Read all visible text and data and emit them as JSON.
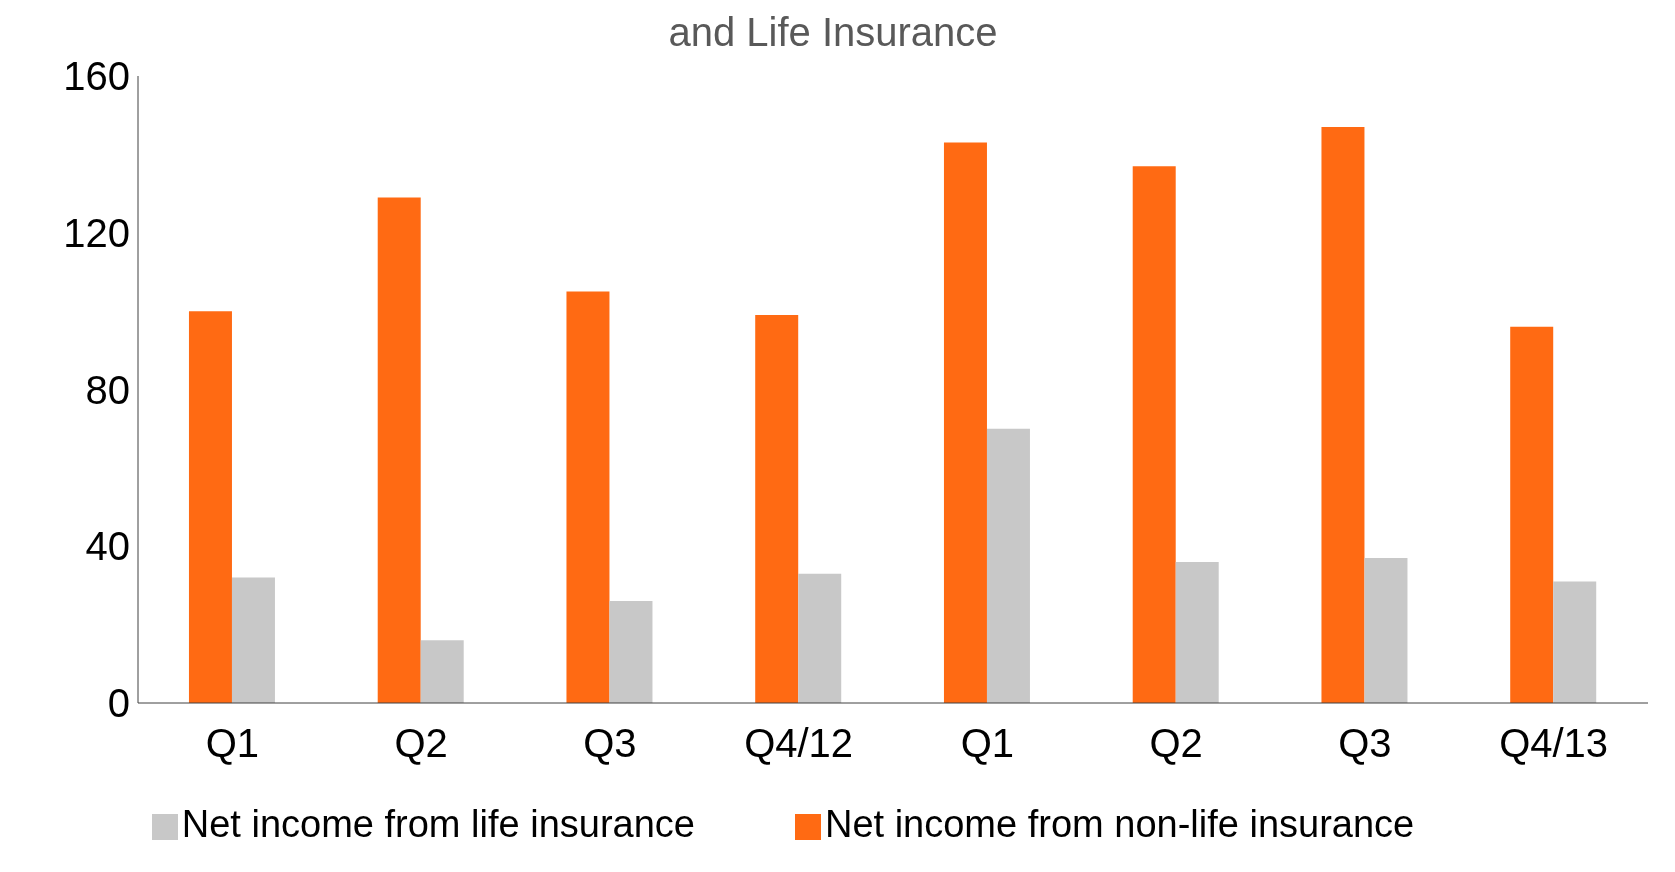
{
  "chart_data": {
    "type": "bar",
    "title": "and Life Insurance",
    "categories": [
      "Q1",
      "Q2",
      "Q3",
      "Q4/12",
      "Q1",
      "Q2",
      "Q3",
      "Q4/13"
    ],
    "series": [
      {
        "name": "Net income from non-life insurance",
        "color": "#ff6a13",
        "values": [
          100,
          129,
          105,
          99,
          143,
          137,
          147,
          96
        ]
      },
      {
        "name": "Net income from life insurance",
        "color": "#c8c8c8",
        "values": [
          32,
          16,
          26,
          33,
          70,
          36,
          37,
          31
        ]
      }
    ],
    "ylim": [
      0,
      160
    ],
    "yticks": [
      0,
      40,
      80,
      120,
      160
    ],
    "grid": false,
    "legend": "bottom"
  }
}
